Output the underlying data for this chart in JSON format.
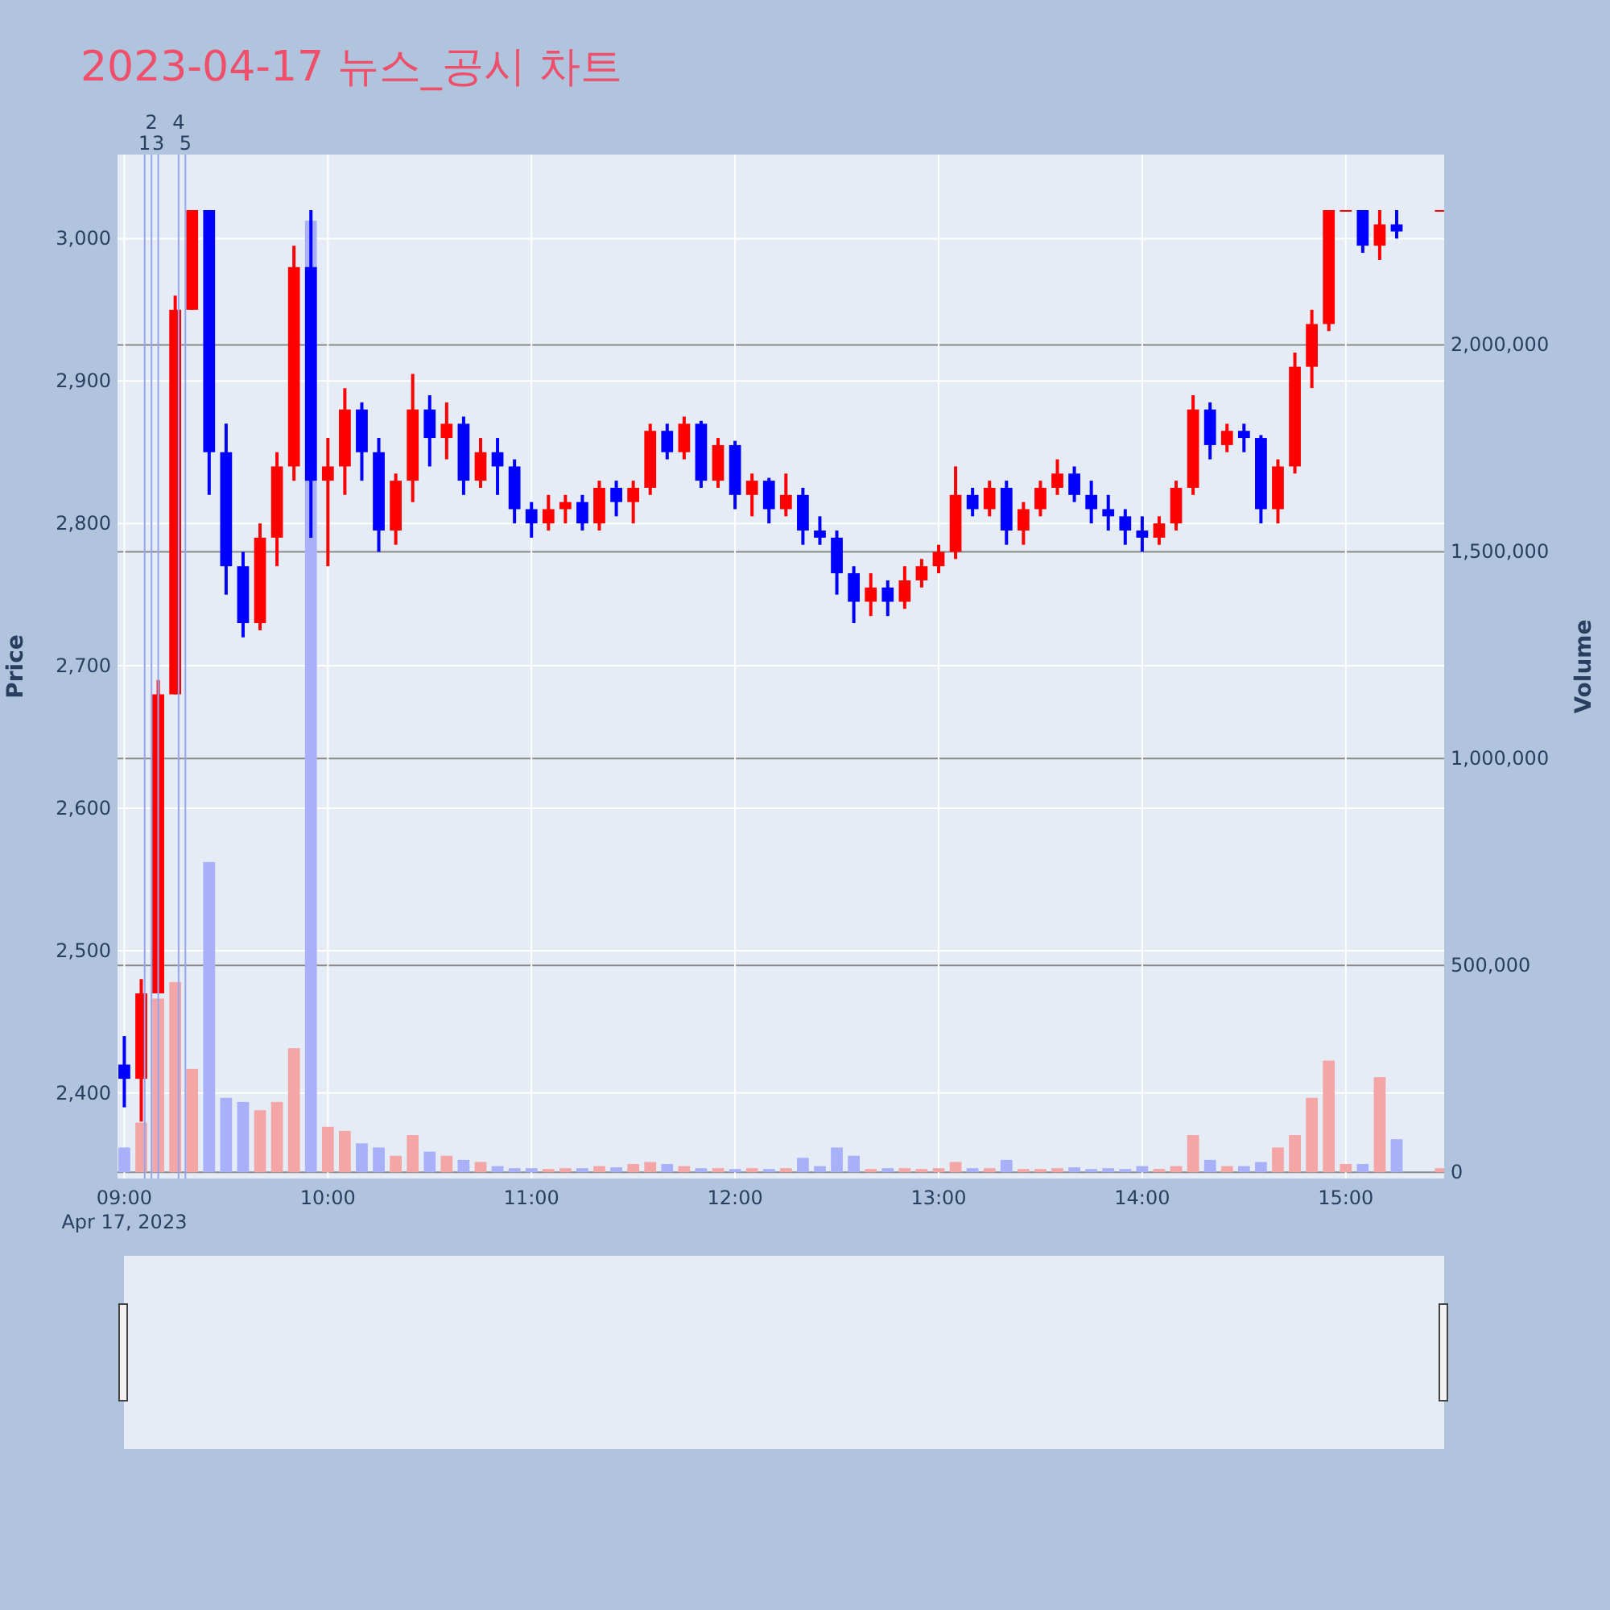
{
  "chart_data": {
    "type": "candlestick",
    "title": "2023-04-17 뉴스_공시 차트",
    "ylabel": "Price",
    "y2label": "Volume",
    "x": [
      "2023-04-17T09:00",
      "2023-04-17T09:05",
      "2023-04-17T09:10",
      "2023-04-17T09:15",
      "2023-04-17T09:20",
      "2023-04-17T09:25",
      "2023-04-17T09:30",
      "2023-04-17T09:35",
      "2023-04-17T09:40",
      "2023-04-17T09:45",
      "2023-04-17T09:50",
      "2023-04-17T09:55",
      "2023-04-17T10:00",
      "2023-04-17T10:05",
      "2023-04-17T10:10",
      "2023-04-17T10:15",
      "2023-04-17T10:20",
      "2023-04-17T10:25",
      "2023-04-17T10:30",
      "2023-04-17T10:35",
      "2023-04-17T10:40",
      "2023-04-17T10:45",
      "2023-04-17T10:50",
      "2023-04-17T10:55",
      "2023-04-17T11:00",
      "2023-04-17T11:05",
      "2023-04-17T11:10",
      "2023-04-17T11:15",
      "2023-04-17T11:20",
      "2023-04-17T11:25",
      "2023-04-17T11:30",
      "2023-04-17T11:35",
      "2023-04-17T11:40",
      "2023-04-17T11:45",
      "2023-04-17T11:50",
      "2023-04-17T11:55",
      "2023-04-17T12:00",
      "2023-04-17T12:05",
      "2023-04-17T12:10",
      "2023-04-17T12:15",
      "2023-04-17T12:20",
      "2023-04-17T12:25",
      "2023-04-17T12:30",
      "2023-04-17T12:35",
      "2023-04-17T12:40",
      "2023-04-17T12:45",
      "2023-04-17T12:50",
      "2023-04-17T12:55",
      "2023-04-17T13:00",
      "2023-04-17T13:05",
      "2023-04-17T13:10",
      "2023-04-17T13:15",
      "2023-04-17T13:20",
      "2023-04-17T13:25",
      "2023-04-17T13:30",
      "2023-04-17T13:35",
      "2023-04-17T13:40",
      "2023-04-17T13:45",
      "2023-04-17T13:50",
      "2023-04-17T13:55",
      "2023-04-17T14:00",
      "2023-04-17T14:05",
      "2023-04-17T14:10",
      "2023-04-17T14:15",
      "2023-04-17T14:20",
      "2023-04-17T14:25",
      "2023-04-17T14:30",
      "2023-04-17T14:35",
      "2023-04-17T14:40",
      "2023-04-17T14:45",
      "2023-04-17T14:50",
      "2023-04-17T14:55",
      "2023-04-17T15:00",
      "2023-04-17T15:05",
      "2023-04-17T15:10",
      "2023-04-17T15:15",
      "2023-04-17T15:28"
    ],
    "series": [
      {
        "colors": [
          "#0000ff",
          "#ff0000",
          "#ff0000",
          "#ff0000",
          "#ff0000",
          "#0000ff",
          "#0000ff",
          "#0000ff",
          "#ff0000",
          "#ff0000",
          "#ff0000",
          "#0000ff",
          "#ff0000",
          "#ff0000",
          "#0000ff",
          "#0000ff",
          "#ff0000",
          "#ff0000",
          "#0000ff",
          "#ff0000",
          "#0000ff",
          "#ff0000",
          "#0000ff",
          "#0000ff",
          "#0000ff",
          "#ff0000",
          "#ff0000",
          "#0000ff",
          "#ff0000",
          "#0000ff",
          "#ff0000",
          "#ff0000",
          "#0000ff",
          "#ff0000",
          "#0000ff",
          "#ff0000",
          "#0000ff",
          "#ff0000",
          "#0000ff",
          "#ff0000",
          "#0000ff",
          "#0000ff",
          "#0000ff",
          "#0000ff",
          "#ff0000",
          "#0000ff",
          "#ff0000",
          "#ff0000",
          "#ff0000",
          "#ff0000",
          "#0000ff",
          "#ff0000",
          "#0000ff",
          "#ff0000",
          "#ff0000",
          "#ff0000",
          "#0000ff",
          "#0000ff",
          "#0000ff",
          "#0000ff",
          "#0000ff",
          "#ff0000",
          "#ff0000",
          "#ff0000",
          "#0000ff",
          "#ff0000",
          "#0000ff",
          "#0000ff",
          "#ff0000",
          "#ff0000",
          "#ff0000",
          "#ff0000",
          "#ff0000",
          "#0000ff",
          "#ff0000",
          "#0000ff",
          "#ff0000"
        ],
        "ohlc": [
          [
            2420,
            2440,
            2390,
            2410
          ],
          [
            2410,
            2480,
            2380,
            2470
          ],
          [
            2470,
            2690,
            2470,
            2680
          ],
          [
            2680,
            2960,
            2680,
            2950
          ],
          [
            2950,
            3020,
            2950,
            3020
          ],
          [
            3020,
            3020,
            2820,
            2850
          ],
          [
            2850,
            2870,
            2750,
            2770
          ],
          [
            2770,
            2780,
            2720,
            2730
          ],
          [
            2730,
            2800,
            2725,
            2790
          ],
          [
            2790,
            2850,
            2770,
            2840
          ],
          [
            2840,
            2995,
            2830,
            2980
          ],
          [
            2980,
            3020,
            2790,
            2830
          ],
          [
            2830,
            2860,
            2770,
            2840
          ],
          [
            2840,
            2895,
            2820,
            2880
          ],
          [
            2880,
            2885,
            2830,
            2850
          ],
          [
            2850,
            2860,
            2780,
            2795
          ],
          [
            2795,
            2835,
            2785,
            2830
          ],
          [
            2830,
            2905,
            2815,
            2880
          ],
          [
            2880,
            2890,
            2840,
            2860
          ],
          [
            2860,
            2885,
            2845,
            2870
          ],
          [
            2870,
            2875,
            2820,
            2830
          ],
          [
            2830,
            2860,
            2825,
            2850
          ],
          [
            2850,
            2860,
            2820,
            2840
          ],
          [
            2840,
            2845,
            2800,
            2810
          ],
          [
            2810,
            2815,
            2790,
            2800
          ],
          [
            2800,
            2820,
            2795,
            2810
          ],
          [
            2810,
            2820,
            2800,
            2815
          ],
          [
            2815,
            2820,
            2795,
            2800
          ],
          [
            2800,
            2830,
            2795,
            2825
          ],
          [
            2825,
            2830,
            2805,
            2815
          ],
          [
            2815,
            2830,
            2800,
            2825
          ],
          [
            2825,
            2870,
            2820,
            2865
          ],
          [
            2865,
            2870,
            2845,
            2850
          ],
          [
            2850,
            2875,
            2845,
            2870
          ],
          [
            2870,
            2872,
            2825,
            2830
          ],
          [
            2830,
            2860,
            2825,
            2855
          ],
          [
            2855,
            2858,
            2810,
            2820
          ],
          [
            2820,
            2835,
            2805,
            2830
          ],
          [
            2830,
            2832,
            2800,
            2810
          ],
          [
            2810,
            2835,
            2805,
            2820
          ],
          [
            2820,
            2825,
            2785,
            2795
          ],
          [
            2795,
            2805,
            2785,
            2790
          ],
          [
            2790,
            2795,
            2750,
            2765
          ],
          [
            2765,
            2770,
            2730,
            2745
          ],
          [
            2745,
            2765,
            2735,
            2755
          ],
          [
            2755,
            2760,
            2735,
            2745
          ],
          [
            2745,
            2770,
            2740,
            2760
          ],
          [
            2760,
            2775,
            2755,
            2770
          ],
          [
            2770,
            2785,
            2765,
            2780
          ],
          [
            2780,
            2840,
            2775,
            2820
          ],
          [
            2820,
            2825,
            2805,
            2810
          ],
          [
            2810,
            2830,
            2805,
            2825
          ],
          [
            2825,
            2830,
            2785,
            2795
          ],
          [
            2795,
            2815,
            2785,
            2810
          ],
          [
            2810,
            2830,
            2805,
            2825
          ],
          [
            2825,
            2845,
            2820,
            2835
          ],
          [
            2835,
            2840,
            2815,
            2820
          ],
          [
            2820,
            2830,
            2800,
            2810
          ],
          [
            2810,
            2820,
            2795,
            2805
          ],
          [
            2805,
            2810,
            2785,
            2795
          ],
          [
            2795,
            2805,
            2780,
            2790
          ],
          [
            2790,
            2805,
            2785,
            2800
          ],
          [
            2800,
            2830,
            2795,
            2825
          ],
          [
            2825,
            2890,
            2820,
            2880
          ],
          [
            2880,
            2885,
            2845,
            2855
          ],
          [
            2855,
            2870,
            2850,
            2865
          ],
          [
            2865,
            2870,
            2850,
            2860
          ],
          [
            2860,
            2862,
            2800,
            2810
          ],
          [
            2810,
            2845,
            2800,
            2840
          ],
          [
            2840,
            2920,
            2835,
            2910
          ],
          [
            2910,
            2950,
            2895,
            2940
          ],
          [
            2940,
            3020,
            2935,
            3020
          ],
          [
            3020,
            3020,
            3020,
            3020
          ],
          [
            3020,
            3020,
            2990,
            2995
          ],
          [
            2995,
            3020,
            2985,
            3010
          ],
          [
            3010,
            3020,
            3000,
            3005
          ],
          [
            3020,
            3020,
            3020,
            3020
          ]
        ]
      },
      {
        "type": "bar",
        "axis": "y2",
        "colors": [
          "#a8b0f8",
          "#f4a6a6",
          "#f4a6a6",
          "#f4a6a6",
          "#f4a6a6",
          "#a8b0f8",
          "#a8b0f8",
          "#a8b0f8",
          "#f4a6a6",
          "#f4a6a6",
          "#f4a6a6",
          "#a8b0f8",
          "#f4a6a6",
          "#f4a6a6",
          "#a8b0f8",
          "#a8b0f8",
          "#f4a6a6",
          "#f4a6a6",
          "#a8b0f8",
          "#f4a6a6",
          "#a8b0f8",
          "#f4a6a6",
          "#a8b0f8",
          "#a8b0f8",
          "#a8b0f8",
          "#f4a6a6",
          "#f4a6a6",
          "#a8b0f8",
          "#f4a6a6",
          "#a8b0f8",
          "#f4a6a6",
          "#f4a6a6",
          "#a8b0f8",
          "#f4a6a6",
          "#a8b0f8",
          "#f4a6a6",
          "#a8b0f8",
          "#f4a6a6",
          "#a8b0f8",
          "#f4a6a6",
          "#a8b0f8",
          "#a8b0f8",
          "#a8b0f8",
          "#a8b0f8",
          "#f4a6a6",
          "#a8b0f8",
          "#f4a6a6",
          "#f4a6a6",
          "#f4a6a6",
          "#f4a6a6",
          "#a8b0f8",
          "#f4a6a6",
          "#a8b0f8",
          "#f4a6a6",
          "#f4a6a6",
          "#f4a6a6",
          "#a8b0f8",
          "#a8b0f8",
          "#a8b0f8",
          "#a8b0f8",
          "#a8b0f8",
          "#f4a6a6",
          "#f4a6a6",
          "#f4a6a6",
          "#a8b0f8",
          "#f4a6a6",
          "#a8b0f8",
          "#a8b0f8",
          "#f4a6a6",
          "#f4a6a6",
          "#f4a6a6",
          "#f4a6a6",
          "#f4a6a6",
          "#a8b0f8",
          "#f4a6a6",
          "#a8b0f8",
          "#f4a6a6"
        ],
        "values": [
          60000,
          120000,
          420000,
          460000,
          250000,
          750000,
          180000,
          170000,
          150000,
          170000,
          300000,
          2300000,
          110000,
          100000,
          70000,
          60000,
          40000,
          90000,
          50000,
          40000,
          30000,
          25000,
          15000,
          10000,
          10000,
          8000,
          10000,
          10000,
          15000,
          12000,
          20000,
          25000,
          20000,
          15000,
          10000,
          10000,
          8000,
          10000,
          8000,
          10000,
          35000,
          15000,
          60000,
          40000,
          8000,
          10000,
          10000,
          8000,
          10000,
          25000,
          10000,
          10000,
          30000,
          8000,
          8000,
          10000,
          12000,
          8000,
          10000,
          8000,
          15000,
          8000,
          15000,
          90000,
          30000,
          15000,
          15000,
          25000,
          60000,
          90000,
          180000,
          270000,
          20000,
          20000,
          230000,
          80000,
          10000
        ]
      }
    ],
    "xlim": [
      "2023-04-17T08:58",
      "2023-04-17T15:29"
    ],
    "xticks": [
      {
        "value": "2023-04-17T09:00",
        "label": "09:00"
      },
      {
        "value": "2023-04-17T10:00",
        "label": "10:00"
      },
      {
        "value": "2023-04-17T11:00",
        "label": "11:00"
      },
      {
        "value": "2023-04-17T12:00",
        "label": "12:00"
      },
      {
        "value": "2023-04-17T13:00",
        "label": "13:00"
      },
      {
        "value": "2023-04-17T14:00",
        "label": "14:00"
      },
      {
        "value": "2023-04-17T15:00",
        "label": "15:00"
      }
    ],
    "ylim": [
      2340,
      3059
    ],
    "yticks": [
      {
        "value": 2400,
        "label": "2,400"
      },
      {
        "value": 2500,
        "label": "2,500"
      },
      {
        "value": 2600,
        "label": "2,600"
      },
      {
        "value": 2700,
        "label": "2,700"
      },
      {
        "value": 2800,
        "label": "2,800"
      },
      {
        "value": 2900,
        "label": "2,900"
      },
      {
        "value": 3000,
        "label": "3,000"
      }
    ],
    "y2lim": [
      -15000,
      2460000
    ],
    "y2ticks": [
      0,
      {
        "value": 500000,
        "label": "500,000"
      },
      {
        "value": 1000000,
        "label": "1,000,000"
      },
      {
        "value": 1500000,
        "label": "1,500,000"
      },
      {
        "value": 2000000,
        "label": "2,000,000"
      }
    ],
    "ref_lines": [
      {
        "axis": "x",
        "value": "2023-04-17T09:06",
        "label": "1",
        "color": "#94a6f0"
      },
      {
        "axis": "x",
        "value": "2023-04-17T09:08",
        "label": "2",
        "color": "#94a6f0"
      },
      {
        "axis": "x",
        "value": "2023-04-17T09:10",
        "label": "3",
        "color": "#94a6f0"
      },
      {
        "axis": "x",
        "value": "2023-04-17T09:16",
        "label": "4",
        "color": "#94a6f0"
      },
      {
        "axis": "x",
        "value": "2023-04-17T09:18",
        "label": "5",
        "color": "#94a6f0"
      }
    ],
    "annotations": [
      "Apr 17, 2023"
    ],
    "grid": true
  }
}
